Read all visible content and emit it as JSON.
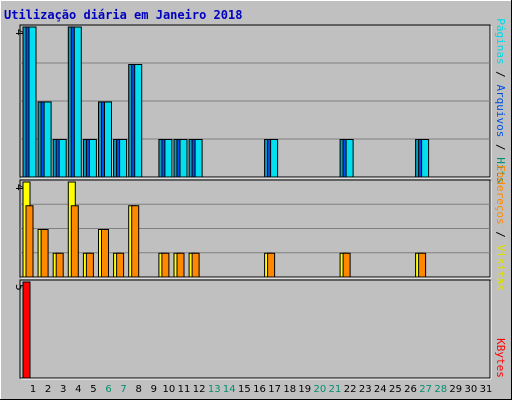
{
  "colors": {
    "background": "#c0c0c0",
    "frame_dark": "#000000",
    "frame_light": "#ffffff",
    "grid": "#808080",
    "title": "#0000c0",
    "weekday": "#000000",
    "weekend": "#008f6f",
    "hits": "#00a0c0",
    "files": "#0050f0",
    "pages": "#00e0f0",
    "visits": "#ffff00",
    "sites": "#ff8800",
    "kbytes": "#ff0000"
  },
  "title": "Utilização diária em Janeiro 2018",
  "legend_top": [
    {
      "text": "Páginas",
      "color": "#00d8e8"
    },
    {
      "text": " / ",
      "color": "#000000"
    },
    {
      "text": "Arquivos",
      "color": "#0050e0"
    },
    {
      "text": " / ",
      "color": "#000000"
    },
    {
      "text": "Hits",
      "color": "#008f6f"
    }
  ],
  "legend_mid": [
    {
      "text": "Endereços",
      "color": "#ff8800"
    },
    {
      "text": " / ",
      "color": "#000000"
    },
    {
      "text": "Visitas",
      "color": "#e0e000"
    }
  ],
  "legend_bottom": [
    {
      "text": "KBytes",
      "color": "#ff0000"
    }
  ],
  "chart_data": {
    "type": "bar",
    "title": "Utilização diária em Janeiro 2018",
    "categories": [
      "1",
      "2",
      "3",
      "4",
      "5",
      "6",
      "7",
      "8",
      "9",
      "10",
      "11",
      "12",
      "13",
      "14",
      "15",
      "16",
      "17",
      "18",
      "19",
      "20",
      "21",
      "22",
      "23",
      "24",
      "25",
      "26",
      "27",
      "28",
      "29",
      "30",
      "31"
    ],
    "weekend_days": [
      "6",
      "7",
      "13",
      "14",
      "20",
      "21",
      "27",
      "28"
    ],
    "panels": [
      {
        "name": "hits",
        "max_label": "4",
        "ylim": [
          0,
          4
        ],
        "series": [
          {
            "name": "Hits",
            "color": "#00a0c0",
            "values": [
              4,
              2,
              1,
              4,
              1,
              2,
              1,
              3,
              0,
              1,
              1,
              1,
              0,
              0,
              0,
              0,
              1,
              0,
              0,
              0,
              0,
              1,
              0,
              0,
              0,
              0,
              1,
              0,
              0,
              0,
              0
            ]
          },
          {
            "name": "Arquivos",
            "color": "#0050f0",
            "values": [
              4,
              2,
              1,
              4,
              1,
              2,
              1,
              3,
              0,
              1,
              1,
              1,
              0,
              0,
              0,
              0,
              1,
              0,
              0,
              0,
              0,
              1,
              0,
              0,
              0,
              0,
              1,
              0,
              0,
              0,
              0
            ]
          },
          {
            "name": "Páginas",
            "color": "#00e0f0",
            "values": [
              4,
              2,
              1,
              4,
              1,
              2,
              1,
              3,
              0,
              1,
              1,
              1,
              0,
              0,
              0,
              0,
              1,
              0,
              0,
              0,
              0,
              1,
              0,
              0,
              0,
              0,
              1,
              0,
              0,
              0,
              0
            ]
          }
        ]
      },
      {
        "name": "visits",
        "max_label": "4",
        "ylim": [
          0,
          4
        ],
        "series": [
          {
            "name": "Visitas",
            "color": "#ffff00",
            "values": [
              4,
              2,
              1,
              4,
              1,
              2,
              1,
              3,
              0,
              1,
              1,
              1,
              0,
              0,
              0,
              0,
              1,
              0,
              0,
              0,
              0,
              1,
              0,
              0,
              0,
              0,
              1,
              0,
              0,
              0,
              0
            ]
          },
          {
            "name": "Endereços",
            "color": "#ff8800",
            "values": [
              3,
              2,
              1,
              3,
              1,
              2,
              1,
              3,
              0,
              1,
              1,
              1,
              0,
              0,
              0,
              0,
              1,
              0,
              0,
              0,
              0,
              1,
              0,
              0,
              0,
              0,
              1,
              0,
              0,
              0,
              0
            ]
          }
        ]
      },
      {
        "name": "kbytes",
        "max_label": "5",
        "ylim": [
          0,
          5
        ],
        "series": [
          {
            "name": "KBytes",
            "color": "#ff0000",
            "values": [
              5,
              0,
              0,
              0,
              0,
              0,
              0,
              0,
              0,
              0,
              0,
              0,
              0,
              0,
              0,
              0,
              0,
              0,
              0,
              0,
              0,
              0,
              0,
              0,
              0,
              0,
              0,
              0,
              0,
              0,
              0
            ]
          }
        ]
      }
    ]
  }
}
